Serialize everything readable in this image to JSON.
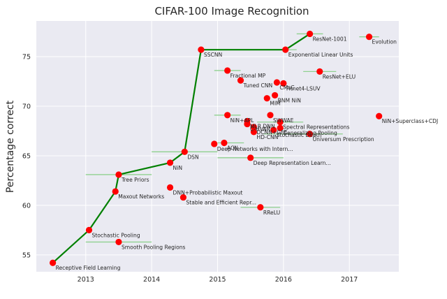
{
  "chart_data": {
    "type": "scatter",
    "title": "CIFAR-100 Image Recognition",
    "xlabel": "",
    "ylabel": "Percentage correct",
    "xlim": [
      2012.25,
      2017.75
    ],
    "ylim": [
      53.3,
      78.6
    ],
    "xticks": [
      2013,
      2014,
      2015,
      2016,
      2017
    ],
    "yticks": [
      55,
      60,
      65,
      70,
      75
    ],
    "grid": true,
    "colors": {
      "background": "#eaeaf2",
      "grid": "#ffffff",
      "point": "#ff0000",
      "frontier": "#008000",
      "errorbar": "#8fd18f"
    },
    "points": [
      {
        "label": "Receptive Field Learning",
        "x": 2012.5,
        "y": 54.2
      },
      {
        "label": "Stochastic Pooling",
        "x": 2013.05,
        "y": 57.5
      },
      {
        "label": "Smooth Pooling Regions",
        "x": 2013.5,
        "y": 56.3,
        "xerr": [
          2013.0,
          2014.0
        ]
      },
      {
        "label": "Maxout Networks",
        "x": 2013.45,
        "y": 61.4
      },
      {
        "label": "Tree Priors",
        "x": 2013.5,
        "y": 63.1,
        "xerr": [
          2013.0,
          2014.0
        ]
      },
      {
        "label": "NiN",
        "x": 2014.28,
        "y": 64.3
      },
      {
        "label": "DNN+Probabilistic Maxout",
        "x": 2014.28,
        "y": 61.8
      },
      {
        "label": "Stable and Efficient Repr...",
        "x": 2014.48,
        "y": 60.8
      },
      {
        "label": "DSN",
        "x": 2014.5,
        "y": 65.4,
        "xerr": [
          2014.0,
          2015.0
        ]
      },
      {
        "label": "Deep Networks with Intern...",
        "x": 2014.95,
        "y": 66.2
      },
      {
        "label": "SSCNN",
        "x": 2014.75,
        "y": 75.7
      },
      {
        "label": "Fractional MP",
        "x": 2015.15,
        "y": 73.6,
        "xerr": [
          2014.95,
          2015.35
        ]
      },
      {
        "label": "Tuned CNN",
        "x": 2015.35,
        "y": 72.6
      },
      {
        "label": "NiN+APL",
        "x": 2015.15,
        "y": 69.1,
        "xerr": [
          2014.95,
          2015.35
        ]
      },
      {
        "label": "MLR DNN",
        "x": 2015.45,
        "y": 68.5
      },
      {
        "label": "C-HVAR",
        "x": 2015.45,
        "y": 68.2
      },
      {
        "label": "DCNN+GFE",
        "x": 2015.55,
        "y": 67.9
      },
      {
        "label": "HD-CNN",
        "x": 2015.55,
        "y": 67.4
      },
      {
        "label": "ACN",
        "x": 2015.1,
        "y": 66.3,
        "xerr": [
          2015.0,
          2015.4
        ]
      },
      {
        "label": "Deep Representation Learn...",
        "x": 2015.5,
        "y": 64.8,
        "xerr": [
          2015.0,
          2016.0
        ]
      },
      {
        "label": "RReLU",
        "x": 2015.65,
        "y": 59.8,
        "xerr": [
          2015.35,
          2015.95
        ]
      },
      {
        "label": "MIM",
        "x": 2015.75,
        "y": 70.8
      },
      {
        "label": "BNM NiN",
        "x": 2015.87,
        "y": 71.1
      },
      {
        "label": "CMsC",
        "x": 2015.9,
        "y": 72.4
      },
      {
        "label": "Fitnet4-LSUV",
        "x": 2016.0,
        "y": 72.3
      },
      {
        "label": "SWWAE",
        "x": 2015.8,
        "y": 69.1
      },
      {
        "label": "Spectral Representations",
        "x": 2015.95,
        "y": 68.4,
        "xerr": [
          2015.6,
          2016.3
        ]
      },
      {
        "label": "Generalizing Pooling",
        "x": 2015.95,
        "y": 67.8
      },
      {
        "label": "Stochastic Depth",
        "x": 2015.85,
        "y": 67.6
      },
      {
        "label": "Universum Prescription",
        "x": 2016.4,
        "y": 67.2,
        "xerr": [
          2015.7,
          2016.9
        ]
      },
      {
        "label": "Exponential Linear Units",
        "x": 2016.03,
        "y": 75.7,
        "xerr": [
          2015.85,
          2016.2
        ]
      },
      {
        "label": "ResNet-1001",
        "x": 2016.4,
        "y": 77.3,
        "xerr": [
          2016.2,
          2016.6
        ]
      },
      {
        "label": "ResNet+ELU",
        "x": 2016.55,
        "y": 73.5,
        "xerr": [
          2016.3,
          2016.8
        ]
      },
      {
        "label": "Evolution",
        "x": 2017.3,
        "y": 77.0,
        "xerr": [
          2017.15,
          2017.45
        ]
      },
      {
        "label": "NiN+Superclass+CDJ",
        "x": 2017.45,
        "y": 69.0
      }
    ],
    "frontier": [
      [
        2012.5,
        54.2
      ],
      [
        2013.05,
        57.5
      ],
      [
        2013.45,
        61.4
      ],
      [
        2013.5,
        63.1
      ],
      [
        2014.28,
        64.3
      ],
      [
        2014.5,
        65.4
      ],
      [
        2014.75,
        75.7
      ],
      [
        2016.03,
        75.7
      ],
      [
        2016.4,
        77.3
      ]
    ]
  }
}
